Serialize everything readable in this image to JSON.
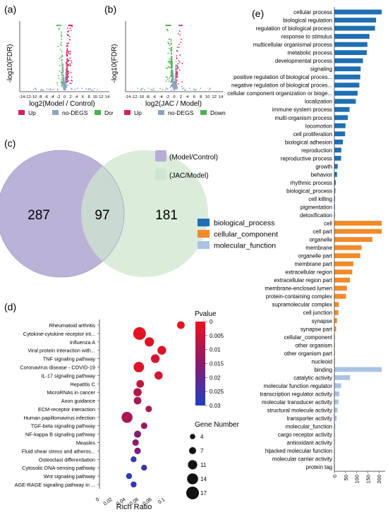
{
  "chart_data": [
    {
      "panel": "(a)",
      "type": "scatter",
      "ylabel": "-log10(FDR)",
      "xlabel": "log2(Model / Control)",
      "x_ticks": [
        "-14",
        "-12",
        "-10",
        "-8",
        "-6",
        "-4",
        "-2",
        "0",
        "2",
        "4",
        "6",
        "8",
        "10",
        "12",
        "14"
      ],
      "legend": [
        {
          "label": "Up",
          "color": "#d6215c"
        },
        {
          "label": "no-DEGS",
          "color": "#8ea3bf"
        },
        {
          "label": "Down",
          "color": "#4caf50"
        }
      ]
    },
    {
      "panel": "(b)",
      "type": "scatter",
      "ylabel": "-log10(FDR)",
      "xlabel": "log2(JAC / Model)",
      "x_ticks": [
        "-14",
        "-12",
        "-10",
        "-8",
        "-6",
        "-4",
        "-2",
        "0",
        "2",
        "4",
        "6",
        "8",
        "10",
        "12",
        "14"
      ],
      "legend": [
        {
          "label": "Up",
          "color": "#d6215c"
        },
        {
          "label": "no-DEGS",
          "color": "#8ea3bf"
        },
        {
          "label": "Down",
          "color": "#4caf50"
        }
      ]
    },
    {
      "panel": "(c)",
      "type": "venn",
      "sets": [
        {
          "name": "(Model/Control)",
          "color": "#b7aed6"
        },
        {
          "name": "(JAC/Model)",
          "color": "#cfe5cf"
        }
      ],
      "left_only": "287",
      "overlap": "97",
      "right_only": "181"
    },
    {
      "panel": "(d)",
      "type": "scatter",
      "xlabel": "Rich Ratio",
      "x_ticks": [
        "0",
        "0.02",
        "0.04",
        "0.06",
        "0.08",
        "0.1"
      ],
      "xlim": [
        0,
        0.13
      ],
      "categories": [
        "Rheumatoid arthritis",
        "Cytokine-cytokine receptor int...",
        "Influenza A",
        "Viral protein interaction with...",
        "TNF signaling pathway",
        "Coronavirus disease - COVID-19",
        "IL-17 signaling pathway",
        "Hepatitis C",
        "MicroRNAs in cancer",
        "Axon guidance",
        "ECM-receptor interaction",
        "Human papillomavirus infection",
        "TGF-beta signaling pathway",
        "NF-kappa B signaling pathway",
        "Measles",
        "Fluid shear stress and atheros...",
        "Osteoclast differentiation",
        "Cytosolic DNA-sensing pathway",
        "Wnt signaling pathway",
        "AGE-RAGE signaling pathway in ..."
      ],
      "points": [
        {
          "x": 0.124,
          "size": 8,
          "p": 0.0
        },
        {
          "x": 0.061,
          "size": 17,
          "p": 0.001
        },
        {
          "x": 0.076,
          "size": 11,
          "p": 0.002
        },
        {
          "x": 0.095,
          "size": 10,
          "p": 0.002
        },
        {
          "x": 0.085,
          "size": 10,
          "p": 0.004
        },
        {
          "x": 0.06,
          "size": 13,
          "p": 0.002
        },
        {
          "x": 0.09,
          "size": 9,
          "p": 0.004
        },
        {
          "x": 0.062,
          "size": 8,
          "p": 0.006
        },
        {
          "x": 0.058,
          "size": 9,
          "p": 0.008
        },
        {
          "x": 0.058,
          "size": 8,
          "p": 0.01
        },
        {
          "x": 0.075,
          "size": 6,
          "p": 0.009
        },
        {
          "x": 0.042,
          "size": 14,
          "p": 0.01
        },
        {
          "x": 0.068,
          "size": 6,
          "p": 0.013
        },
        {
          "x": 0.058,
          "size": 7,
          "p": 0.016
        },
        {
          "x": 0.055,
          "size": 6,
          "p": 0.014
        },
        {
          "x": 0.058,
          "size": 6,
          "p": 0.016
        },
        {
          "x": 0.052,
          "size": 5,
          "p": 0.027
        },
        {
          "x": 0.068,
          "size": 5,
          "p": 0.026
        },
        {
          "x": 0.045,
          "size": 5,
          "p": 0.029
        },
        {
          "x": 0.052,
          "size": 5,
          "p": 0.028
        }
      ],
      "color_legend_title": "Pvalue",
      "color_ticks": [
        "0",
        "0.005",
        "0.01",
        "0.015",
        "0.02",
        "0.025",
        "0.03"
      ],
      "size_legend_title": "Gene Number",
      "size_ticks": [
        "4",
        "7",
        "11",
        "14",
        "17"
      ]
    },
    {
      "panel": "(e)",
      "type": "bar",
      "orientation": "horizontal",
      "x_ticks": [
        "0",
        "50",
        "100",
        "150",
        "200"
      ],
      "xlim": [
        0,
        215
      ],
      "groups": [
        {
          "name": "biological_process",
          "color": "#1f6fb2"
        },
        {
          "name": "cellular_component",
          "color": "#f08a2b"
        },
        {
          "name": "molecular_function",
          "color": "#a9c3e2"
        }
      ],
      "bars": [
        {
          "label": "cellular process",
          "value": 212,
          "group": 0
        },
        {
          "label": "biological regulation",
          "value": 187,
          "group": 0
        },
        {
          "label": "regulation of biological process",
          "value": 182,
          "group": 0
        },
        {
          "label": "response to stimulus",
          "value": 157,
          "group": 0
        },
        {
          "label": "multicellular organismal process",
          "value": 148,
          "group": 0
        },
        {
          "label": "metabolic process",
          "value": 145,
          "group": 0
        },
        {
          "label": "developmental process",
          "value": 128,
          "group": 0
        },
        {
          "label": "signaling",
          "value": 118,
          "group": 0
        },
        {
          "label": "positive regulation of biological proces...",
          "value": 116,
          "group": 0
        },
        {
          "label": "negative regulation of biological proces...",
          "value": 112,
          "group": 0
        },
        {
          "label": "cellular component organization or bioge...",
          "value": 104,
          "group": 0
        },
        {
          "label": "localization",
          "value": 96,
          "group": 0
        },
        {
          "label": "immune system process",
          "value": 68,
          "group": 0
        },
        {
          "label": "multi-organism process",
          "value": 60,
          "group": 0
        },
        {
          "label": "locomotion",
          "value": 50,
          "group": 0
        },
        {
          "label": "cell proliferation",
          "value": 48,
          "group": 0
        },
        {
          "label": "biological adhesion",
          "value": 38,
          "group": 0
        },
        {
          "label": "reproduction",
          "value": 31,
          "group": 0
        },
        {
          "label": "reproductive process",
          "value": 30,
          "group": 0
        },
        {
          "label": "growth",
          "value": 15,
          "group": 0
        },
        {
          "label": "behavior",
          "value": 12,
          "group": 0
        },
        {
          "label": "rhythmic process",
          "value": 6,
          "group": 0
        },
        {
          "label": "biological_process",
          "value": 4,
          "group": 0
        },
        {
          "label": "cell killing",
          "value": 3,
          "group": 0
        },
        {
          "label": "pigmentation",
          "value": 1,
          "group": 0
        },
        {
          "label": "detoxification",
          "value": 1,
          "group": 0
        },
        {
          "label": "cell",
          "value": 212,
          "group": 1
        },
        {
          "label": "cell part",
          "value": 212,
          "group": 1
        },
        {
          "label": "organelle",
          "value": 170,
          "group": 1
        },
        {
          "label": "membrane",
          "value": 122,
          "group": 1
        },
        {
          "label": "organelle part",
          "value": 116,
          "group": 1
        },
        {
          "label": "membrane part",
          "value": 85,
          "group": 1
        },
        {
          "label": "extracellular region",
          "value": 80,
          "group": 1
        },
        {
          "label": "extracellular region part",
          "value": 70,
          "group": 1
        },
        {
          "label": "membrane-enclosed lumen",
          "value": 56,
          "group": 1
        },
        {
          "label": "protein-containing complex",
          "value": 52,
          "group": 1
        },
        {
          "label": "supramolecular complex",
          "value": 20,
          "group": 1
        },
        {
          "label": "cell junction",
          "value": 18,
          "group": 1
        },
        {
          "label": "synapse",
          "value": 12,
          "group": 1
        },
        {
          "label": "synapse part",
          "value": 8,
          "group": 1
        },
        {
          "label": "cellular_component",
          "value": 3,
          "group": 1
        },
        {
          "label": "other organism",
          "value": 1,
          "group": 1
        },
        {
          "label": "other organism part",
          "value": 1,
          "group": 1
        },
        {
          "label": "nucleoid",
          "value": 1,
          "group": 1
        },
        {
          "label": "binding",
          "value": 212,
          "group": 2
        },
        {
          "label": "catalytic activity",
          "value": 70,
          "group": 2
        },
        {
          "label": "molecular function regulator",
          "value": 30,
          "group": 2
        },
        {
          "label": "transcription regulator activity",
          "value": 22,
          "group": 2
        },
        {
          "label": "molecular transducer activity",
          "value": 18,
          "group": 2
        },
        {
          "label": "structural molecule activity",
          "value": 14,
          "group": 2
        },
        {
          "label": "transporter activity",
          "value": 10,
          "group": 2
        },
        {
          "label": "molecular_function",
          "value": 4,
          "group": 2
        },
        {
          "label": "cargo receptor activity",
          "value": 2,
          "group": 2
        },
        {
          "label": "antioxidant activity",
          "value": 1,
          "group": 2
        },
        {
          "label": "hijacked molecular function",
          "value": 1,
          "group": 2
        },
        {
          "label": "molecular carrier activity",
          "value": 1,
          "group": 2
        },
        {
          "label": "protein tag",
          "value": 1,
          "group": 2
        }
      ]
    }
  ]
}
